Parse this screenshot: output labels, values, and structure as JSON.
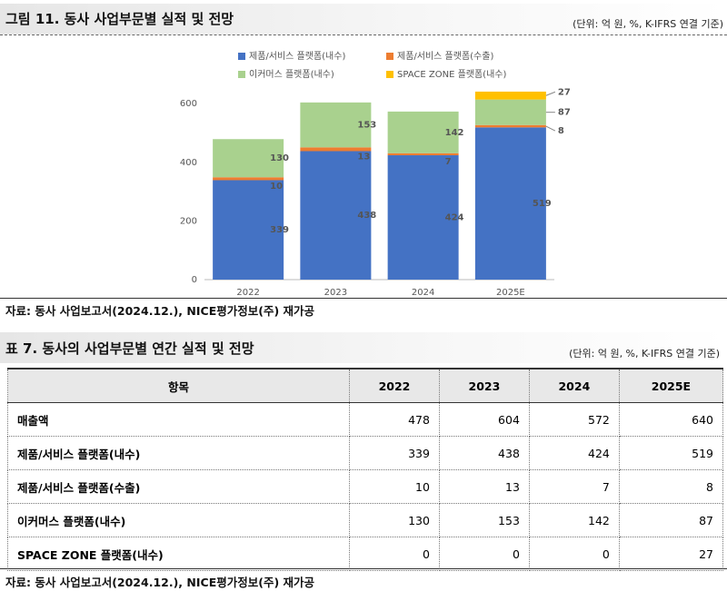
{
  "figure": {
    "title": "그림 11. 동사 사업부문별 실적 및 전망",
    "unit": "(단위: 억 원, %, K-IFRS 연결 기준)",
    "source": "자료: 동사 사업보고서(2024.12.), NICE평가정보(주) 재가공"
  },
  "chart_data": {
    "type": "bar",
    "stacked": true,
    "categories": [
      "2022",
      "2023",
      "2024",
      "2025E"
    ],
    "series": [
      {
        "name": "제품/서비스 플랫폼(내수)",
        "color": "#4472c4",
        "values": [
          339,
          438,
          424,
          519
        ]
      },
      {
        "name": "제품/서비스 플랫폼(수출)",
        "color": "#ed7d31",
        "values": [
          10,
          13,
          7,
          8
        ]
      },
      {
        "name": "이커머스 플랫폼(내수)",
        "color": "#a9d18e",
        "values": [
          130,
          153,
          142,
          87
        ]
      },
      {
        "name": "SPACE ZONE 플랫폼(내수)",
        "color": "#ffc000",
        "values": [
          0,
          0,
          0,
          27
        ]
      }
    ],
    "ylim": [
      0,
      650
    ],
    "yticks": [
      0,
      200,
      400,
      600
    ],
    "grid": false,
    "legend": "top"
  },
  "table": {
    "title": "표 7. 동사의 사업부문별 연간 실적 및 전망",
    "unit": "(단위: 억 원, %, K-IFRS 연결 기준)",
    "header": [
      "항목",
      "2022",
      "2023",
      "2024",
      "2025E"
    ],
    "rows": [
      [
        "매출액",
        478,
        604,
        572,
        640
      ],
      [
        "제품/서비스 플랫폼(내수)",
        339,
        438,
        424,
        519
      ],
      [
        "제품/서비스 플랫폼(수출)",
        10,
        13,
        7,
        8
      ],
      [
        "이커머스 플랫폼(내수)",
        130,
        153,
        142,
        87
      ],
      [
        "SPACE ZONE 플랫폼(내수)",
        0,
        0,
        0,
        27
      ]
    ],
    "source": "자료: 동사 사업보고서(2024.12.), NICE평가정보(주) 재가공"
  }
}
